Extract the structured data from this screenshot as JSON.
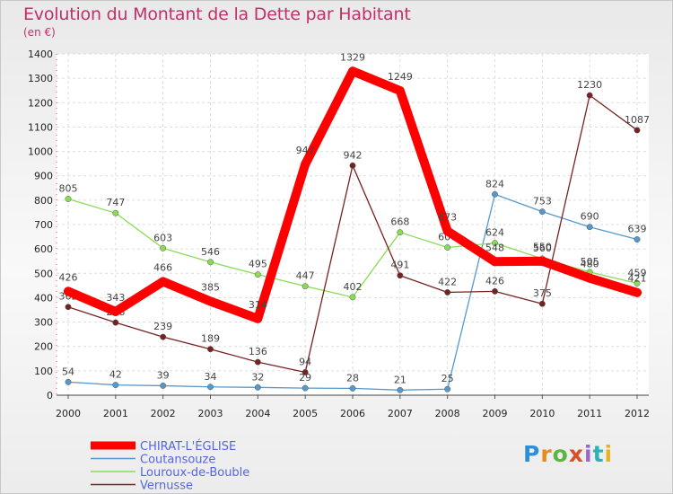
{
  "chart_data": {
    "type": "line",
    "title": "Evolution du Montant de la Dette par Habitant",
    "subtitle": "(en €)",
    "categories": [
      "2000",
      "2001",
      "2002",
      "2003",
      "2004",
      "2005",
      "2006",
      "2007",
      "2008",
      "2009",
      "2010",
      "2011",
      "2012"
    ],
    "ylim": [
      0,
      1400
    ],
    "yticks": [
      0,
      100,
      200,
      300,
      400,
      500,
      600,
      700,
      800,
      900,
      1000,
      1100,
      1200,
      1300,
      1400
    ],
    "grid": true,
    "legend_position": "bottom-left",
    "series": [
      {
        "name": "CHIRAT-L'ÉGLISE",
        "color": "#ff0000",
        "values": [
          426,
          343,
          466,
          385,
          314,
          947,
          1329,
          1249,
          673,
          548,
          550,
          480,
          421
        ]
      },
      {
        "name": "Coutansouze",
        "color": "#5599cc",
        "values": [
          54,
          42,
          39,
          34,
          32,
          29,
          28,
          21,
          25,
          824,
          753,
          690,
          639
        ]
      },
      {
        "name": "Louroux-de-Bouble",
        "color": "#88dd55",
        "values": [
          805,
          747,
          603,
          546,
          495,
          447,
          402,
          668,
          606,
          624,
          560,
          505,
          459
        ]
      },
      {
        "name": "Vernusse",
        "color": "#772222",
        "values": [
          362,
          298,
          239,
          189,
          136,
          94,
          942,
          491,
          422,
          426,
          375,
          1230,
          1087
        ]
      }
    ]
  },
  "logo_text": "Proxiti"
}
